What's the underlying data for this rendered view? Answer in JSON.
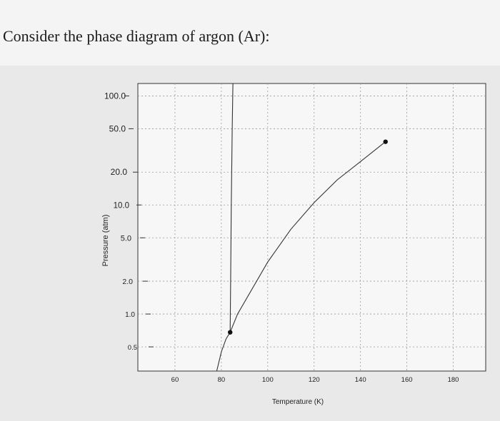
{
  "page": {
    "question": "Consider the phase diagram of argon (Ar):"
  },
  "chart_data": {
    "type": "line",
    "title": "",
    "xlabel": "Temperature (K)",
    "ylabel": "Pressure (atm)",
    "xlim": [
      44,
      194
    ],
    "ylim": [
      0.3,
      130
    ],
    "yscale": "log",
    "grid": true,
    "x_ticks": [
      60,
      80,
      100,
      120,
      140,
      160,
      180
    ],
    "x_tick_labels": [
      "60",
      "80",
      "100",
      "120",
      "140",
      "160",
      "180"
    ],
    "y_ticks": [
      0.5,
      1.0,
      2.0,
      5.0,
      10.0,
      20.0,
      50.0,
      100.0
    ],
    "y_tick_labels": [
      "0.5",
      "1.0",
      "2.0",
      "5.0",
      "10.0",
      "20.0",
      "50.0",
      "100.0"
    ],
    "series": [
      {
        "kind": "sublimation",
        "points": [
          [
            78.0,
            0.3
          ],
          [
            80.0,
            0.45
          ],
          [
            82.0,
            0.59
          ],
          [
            83.8,
            0.68
          ]
        ]
      },
      {
        "kind": "melting",
        "points": [
          [
            83.8,
            0.68
          ],
          [
            84.0,
            2.0
          ],
          [
            84.3,
            10.0
          ],
          [
            84.7,
            50.0
          ],
          [
            85.0,
            130.0
          ]
        ]
      },
      {
        "kind": "vaporization",
        "points": [
          [
            83.8,
            0.68
          ],
          [
            87.0,
            1.0
          ],
          [
            100.0,
            3.0
          ],
          [
            110.0,
            6.0
          ],
          [
            120.0,
            10.5
          ],
          [
            130.0,
            17.0
          ],
          [
            140.0,
            25.0
          ],
          [
            150.8,
            38.0
          ]
        ]
      }
    ],
    "markers": [
      {
        "x": 83.8,
        "y": 0.68
      },
      {
        "x": 150.8,
        "y": 38.0
      }
    ]
  }
}
